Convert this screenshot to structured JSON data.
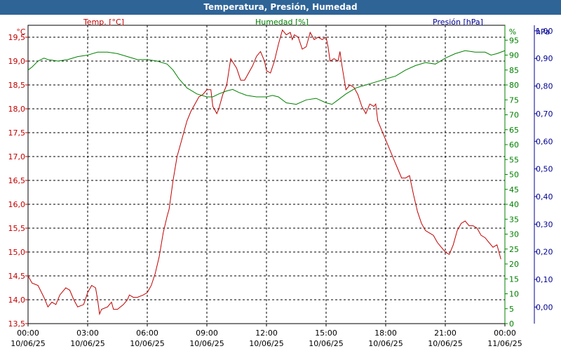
{
  "title": "Temperatura, Presión, Humedad",
  "colors": {
    "temp": "#c00000",
    "hum": "#008000",
    "pres": "#000090",
    "header": "#2f6497"
  },
  "chart_data": {
    "type": "line",
    "title": "Temperatura, Presión, Humedad",
    "axes": {
      "temp": {
        "label": "Temp. [°C]",
        "unit": "°C",
        "range": [
          13.5,
          19.75
        ],
        "ticks": [
          "13,5",
          "14,0",
          "14,5",
          "15,0",
          "15,5",
          "16,0",
          "16,5",
          "17,0",
          "17,5",
          "18,0",
          "18,5",
          "19,0",
          "19,5"
        ]
      },
      "hum": {
        "label": "Humedad [%]",
        "unit": "%",
        "range": [
          0,
          100
        ],
        "ticks": [
          "0",
          "5",
          "10",
          "15",
          "20",
          "25",
          "30",
          "35",
          "40",
          "45",
          "50",
          "55",
          "60",
          "65",
          "70",
          "75",
          "80",
          "85",
          "90",
          "95"
        ]
      },
      "pres": {
        "label": "Presión [hPa]",
        "unit": "hPa",
        "range": [
          -0.06,
          1.02
        ],
        "ticks": [
          "0,00",
          "0,10",
          "0,20",
          "0,30",
          "0,40",
          "0,50",
          "0,60",
          "0,70",
          "0,80",
          "0,90",
          "1,00"
        ]
      },
      "x": {
        "ticks": [
          {
            "time": "00:00",
            "date": "10/06/25"
          },
          {
            "time": "03:00",
            "date": "10/06/25"
          },
          {
            "time": "06:00",
            "date": "10/06/25"
          },
          {
            "time": "09:00",
            "date": "10/06/25"
          },
          {
            "time": "12:00",
            "date": "10/06/25"
          },
          {
            "time": "15:00",
            "date": "10/06/25"
          },
          {
            "time": "18:00",
            "date": "10/06/25"
          },
          {
            "time": "21:00",
            "date": "10/06/25"
          },
          {
            "time": "00:00",
            "date": "11/06/25"
          }
        ]
      }
    },
    "grid": true,
    "series": [
      {
        "name": "Temp. [°C]",
        "axis": "temp",
        "color": "#c00000",
        "points": [
          [
            0,
            14.5
          ],
          [
            0.2,
            14.35
          ],
          [
            0.5,
            14.3
          ],
          [
            0.8,
            14.05
          ],
          [
            1.0,
            13.85
          ],
          [
            1.2,
            13.95
          ],
          [
            1.4,
            13.9
          ],
          [
            1.6,
            14.1
          ],
          [
            1.9,
            14.25
          ],
          [
            2.1,
            14.2
          ],
          [
            2.3,
            14.0
          ],
          [
            2.5,
            13.85
          ],
          [
            2.8,
            13.9
          ],
          [
            3.0,
            14.15
          ],
          [
            3.2,
            14.3
          ],
          [
            3.4,
            14.25
          ],
          [
            3.5,
            14.0
          ],
          [
            3.6,
            13.7
          ],
          [
            3.7,
            13.8
          ],
          [
            4.0,
            13.85
          ],
          [
            4.2,
            13.95
          ],
          [
            4.3,
            13.8
          ],
          [
            4.5,
            13.8
          ],
          [
            4.8,
            13.9
          ],
          [
            5.0,
            14.0
          ],
          [
            5.1,
            14.1
          ],
          [
            5.3,
            14.05
          ],
          [
            5.5,
            14.05
          ],
          [
            5.8,
            14.1
          ],
          [
            6.0,
            14.15
          ],
          [
            6.2,
            14.3
          ],
          [
            6.4,
            14.55
          ],
          [
            6.6,
            14.9
          ],
          [
            6.8,
            15.4
          ],
          [
            7.0,
            15.75
          ],
          [
            7.1,
            15.9
          ],
          [
            7.3,
            16.5
          ],
          [
            7.5,
            17.0
          ],
          [
            7.7,
            17.3
          ],
          [
            7.9,
            17.6
          ],
          [
            8.0,
            17.75
          ],
          [
            8.2,
            17.95
          ],
          [
            8.4,
            18.1
          ],
          [
            8.6,
            18.25
          ],
          [
            8.8,
            18.3
          ],
          [
            9.0,
            18.4
          ],
          [
            9.2,
            18.4
          ],
          [
            9.3,
            18.05
          ],
          [
            9.5,
            17.9
          ],
          [
            9.6,
            18.0
          ],
          [
            9.8,
            18.3
          ],
          [
            10.0,
            18.5
          ],
          [
            10.2,
            19.05
          ],
          [
            10.5,
            18.85
          ],
          [
            10.7,
            18.6
          ],
          [
            10.9,
            18.6
          ],
          [
            11.1,
            18.75
          ],
          [
            11.3,
            18.9
          ],
          [
            11.5,
            19.1
          ],
          [
            11.7,
            19.2
          ],
          [
            11.9,
            19.0
          ],
          [
            12.0,
            18.8
          ],
          [
            12.2,
            18.75
          ],
          [
            12.4,
            19.0
          ],
          [
            12.6,
            19.35
          ],
          [
            12.8,
            19.65
          ],
          [
            13.0,
            19.55
          ],
          [
            13.2,
            19.6
          ],
          [
            13.3,
            19.45
          ],
          [
            13.4,
            19.55
          ],
          [
            13.6,
            19.5
          ],
          [
            13.8,
            19.25
          ],
          [
            14.0,
            19.3
          ],
          [
            14.2,
            19.6
          ],
          [
            14.4,
            19.45
          ],
          [
            14.6,
            19.5
          ],
          [
            14.8,
            19.45
          ],
          [
            15.0,
            19.5
          ],
          [
            15.1,
            19.3
          ],
          [
            15.2,
            19.0
          ],
          [
            15.4,
            19.05
          ],
          [
            15.6,
            19.0
          ],
          [
            15.7,
            19.2
          ],
          [
            15.8,
            18.9
          ],
          [
            16.0,
            18.4
          ],
          [
            16.2,
            18.5
          ],
          [
            16.4,
            18.45
          ],
          [
            16.6,
            18.3
          ],
          [
            16.8,
            18.05
          ],
          [
            17.0,
            17.9
          ],
          [
            17.2,
            18.1
          ],
          [
            17.4,
            18.05
          ],
          [
            17.5,
            18.1
          ],
          [
            17.6,
            17.75
          ],
          [
            17.8,
            17.55
          ],
          [
            18.0,
            17.35
          ],
          [
            18.2,
            17.15
          ],
          [
            18.4,
            16.95
          ],
          [
            18.6,
            16.75
          ],
          [
            18.8,
            16.55
          ],
          [
            19.0,
            16.55
          ],
          [
            19.2,
            16.6
          ],
          [
            19.4,
            16.2
          ],
          [
            19.6,
            15.85
          ],
          [
            19.8,
            15.6
          ],
          [
            20.0,
            15.45
          ],
          [
            20.2,
            15.4
          ],
          [
            20.4,
            15.35
          ],
          [
            20.6,
            15.2
          ],
          [
            20.8,
            15.1
          ],
          [
            21.0,
            15.0
          ],
          [
            21.2,
            14.95
          ],
          [
            21.4,
            15.15
          ],
          [
            21.6,
            15.45
          ],
          [
            21.8,
            15.6
          ],
          [
            22.0,
            15.65
          ],
          [
            22.2,
            15.55
          ],
          [
            22.4,
            15.55
          ],
          [
            22.6,
            15.5
          ],
          [
            22.8,
            15.35
          ],
          [
            23.0,
            15.3
          ],
          [
            23.2,
            15.2
          ],
          [
            23.4,
            15.1
          ],
          [
            23.6,
            15.15
          ],
          [
            23.8,
            14.85
          ]
        ]
      },
      {
        "name": "Humedad [%]",
        "axis": "hum",
        "color": "#008000",
        "points": [
          [
            0,
            85
          ],
          [
            0.2,
            86
          ],
          [
            0.5,
            88
          ],
          [
            0.8,
            89
          ],
          [
            1.0,
            88.5
          ],
          [
            1.5,
            88
          ],
          [
            2.0,
            88.5
          ],
          [
            2.5,
            89.5
          ],
          [
            3.0,
            90
          ],
          [
            3.5,
            91
          ],
          [
            4.0,
            91
          ],
          [
            4.5,
            90.5
          ],
          [
            5.0,
            89.5
          ],
          [
            5.5,
            88.5
          ],
          [
            6.0,
            88.5
          ],
          [
            6.5,
            88
          ],
          [
            7.0,
            87
          ],
          [
            7.3,
            85
          ],
          [
            7.6,
            82
          ],
          [
            8.0,
            79
          ],
          [
            8.5,
            77
          ],
          [
            9.0,
            76
          ],
          [
            9.3,
            76
          ],
          [
            9.6,
            77
          ],
          [
            10.0,
            78
          ],
          [
            10.3,
            78.5
          ],
          [
            10.6,
            77.5
          ],
          [
            11.0,
            76.5
          ],
          [
            11.5,
            76
          ],
          [
            12.0,
            76
          ],
          [
            12.3,
            76.5
          ],
          [
            12.6,
            76
          ],
          [
            13.0,
            74
          ],
          [
            13.5,
            73.5
          ],
          [
            14.0,
            75
          ],
          [
            14.5,
            75.5
          ],
          [
            15.0,
            74
          ],
          [
            15.3,
            73.5
          ],
          [
            15.6,
            75
          ],
          [
            16.0,
            77
          ],
          [
            16.5,
            79
          ],
          [
            17.0,
            80
          ],
          [
            17.5,
            81
          ],
          [
            18.0,
            82
          ],
          [
            18.5,
            83
          ],
          [
            19.0,
            85
          ],
          [
            19.5,
            86.5
          ],
          [
            20.0,
            87.5
          ],
          [
            20.5,
            87
          ],
          [
            21.0,
            89
          ],
          [
            21.5,
            90.5
          ],
          [
            22.0,
            91.5
          ],
          [
            22.5,
            91
          ],
          [
            23.0,
            91
          ],
          [
            23.3,
            90
          ],
          [
            23.6,
            90.5
          ],
          [
            24,
            91.5
          ]
        ]
      }
    ]
  }
}
